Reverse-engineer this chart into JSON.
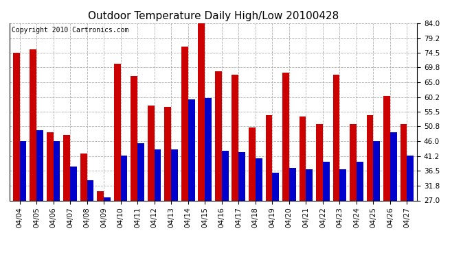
{
  "title": "Outdoor Temperature Daily High/Low 20100428",
  "copyright": "Copyright 2010 Cartronics.com",
  "dates": [
    "04/04",
    "04/05",
    "04/06",
    "04/07",
    "04/08",
    "04/09",
    "04/10",
    "04/11",
    "04/12",
    "04/13",
    "04/14",
    "04/15",
    "04/16",
    "04/17",
    "04/18",
    "04/19",
    "04/20",
    "04/21",
    "04/22",
    "04/23",
    "04/24",
    "04/25",
    "04/26",
    "04/27"
  ],
  "highs": [
    74.5,
    75.5,
    49.0,
    48.0,
    42.0,
    30.0,
    71.0,
    67.0,
    57.5,
    57.0,
    76.5,
    84.5,
    68.5,
    67.5,
    50.5,
    54.5,
    68.0,
    54.0,
    51.5,
    67.5,
    51.5,
    54.5,
    60.5,
    51.5
  ],
  "lows": [
    46.0,
    49.5,
    46.0,
    38.0,
    33.5,
    28.0,
    41.5,
    45.5,
    43.5,
    43.5,
    59.5,
    60.0,
    43.0,
    42.5,
    40.5,
    36.0,
    37.5,
    37.0,
    39.5,
    37.0,
    39.5,
    46.0,
    49.0,
    41.5
  ],
  "high_color": "#cc0000",
  "low_color": "#0000cc",
  "bg_color": "#ffffff",
  "grid_color": "#b0b0b0",
  "yticks": [
    27.0,
    31.8,
    36.5,
    41.2,
    46.0,
    50.8,
    55.5,
    60.2,
    65.0,
    69.8,
    74.5,
    79.2,
    84.0
  ],
  "ymin": 27.0,
  "ymax": 84.0,
  "bar_width": 0.4,
  "title_fontsize": 11,
  "tick_fontsize": 7.5,
  "copyright_fontsize": 7
}
